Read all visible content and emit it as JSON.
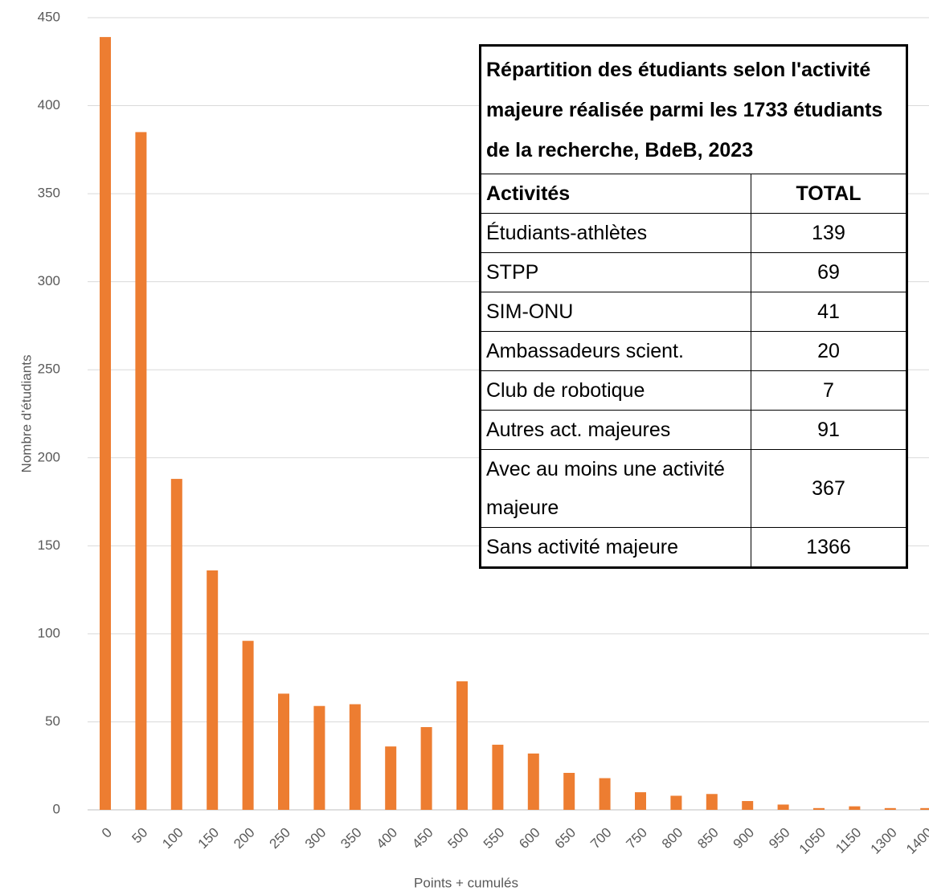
{
  "chart_data": {
    "type": "bar",
    "x_label": "Points + cumulés",
    "y_label": "Nombre d'étudiants",
    "categories": [
      "0",
      "50",
      "100",
      "150",
      "200",
      "250",
      "300",
      "350",
      "400",
      "450",
      "500",
      "550",
      "600",
      "650",
      "700",
      "750",
      "800",
      "850",
      "900",
      "950",
      "1050",
      "1150",
      "1300",
      "1400"
    ],
    "values": [
      439,
      385,
      188,
      136,
      96,
      66,
      59,
      60,
      36,
      47,
      73,
      37,
      32,
      21,
      18,
      10,
      8,
      9,
      5,
      3,
      1,
      2,
      1,
      1
    ],
    "color": "#ed7d31",
    "ylim": [
      0,
      450
    ],
    "yticks": [
      0,
      50,
      100,
      150,
      200,
      250,
      300,
      350,
      400,
      450
    ],
    "grid": true
  },
  "table": {
    "title": "Répartition des étudiants selon l'activité majeure réalisée parmi les 1733 étudiants de la recherche, BdeB, 2023",
    "header": [
      "Activités",
      "TOTAL"
    ],
    "rows": [
      [
        "Étudiants-athlètes",
        139
      ],
      [
        "STPP",
        69
      ],
      [
        "SIM-ONU",
        41
      ],
      [
        "Ambassadeurs scient.",
        20
      ],
      [
        "Club de robotique",
        7
      ],
      [
        "Autres act. majeures",
        91
      ],
      [
        "Avec au moins une activité majeure",
        367
      ],
      [
        "Sans activité majeure",
        1366
      ]
    ]
  }
}
